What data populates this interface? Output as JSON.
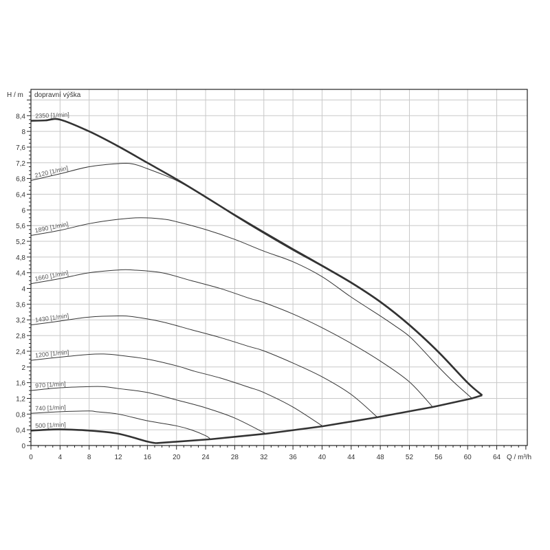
{
  "chart_data": {
    "type": "line",
    "title": "",
    "ylabel_axis": "H / m",
    "ylabel_text": "dopravní výška",
    "xlabel": "Q / m³/h",
    "xlim": [
      0,
      68.2
    ],
    "ylim": [
      0,
      9.07
    ],
    "x_ticks": [
      "0",
      "4",
      "8",
      "12",
      "16",
      "20",
      "24",
      "28",
      "32",
      "36",
      "40",
      "44",
      "48",
      "52",
      "56",
      "60",
      "64"
    ],
    "y_ticks": [
      "0",
      "0,4",
      "0,8",
      "1,2",
      "1,6",
      "2",
      "2,4",
      "2,8",
      "3,2",
      "3,6",
      "4",
      "4,4",
      "4,8",
      "5,2",
      "5,6",
      "6",
      "6,4",
      "6,8",
      "7,2",
      "7,6",
      "8",
      "8,4"
    ],
    "grid": true,
    "colors": {
      "curve": "#333333",
      "grid": "#c8c8c8",
      "axis": "#222222"
    },
    "series": [
      {
        "name": "2350 [1/min]",
        "bold": true,
        "points": [
          [
            0,
            8.27
          ],
          [
            2,
            8.28
          ],
          [
            4,
            8.3
          ],
          [
            8,
            8.0
          ],
          [
            12,
            7.62
          ],
          [
            16,
            7.2
          ],
          [
            20,
            6.78
          ],
          [
            24,
            6.33
          ],
          [
            28,
            5.87
          ],
          [
            32,
            5.43
          ],
          [
            36,
            5.0
          ],
          [
            40,
            4.58
          ],
          [
            44,
            4.15
          ],
          [
            48,
            3.66
          ],
          [
            52,
            3.07
          ],
          [
            56,
            2.38
          ],
          [
            60,
            1.6
          ],
          [
            62,
            1.28
          ]
        ]
      },
      {
        "name": "2120 [1/min]",
        "bold": false,
        "points": [
          [
            0,
            6.75
          ],
          [
            4,
            6.92
          ],
          [
            8,
            7.1
          ],
          [
            12,
            7.18
          ],
          [
            14,
            7.17
          ],
          [
            16,
            7.05
          ],
          [
            20,
            6.75
          ],
          [
            24,
            6.32
          ],
          [
            28,
            5.85
          ],
          [
            32,
            5.4
          ],
          [
            36,
            4.97
          ],
          [
            40,
            4.56
          ],
          [
            44,
            4.13
          ],
          [
            48,
            3.64
          ],
          [
            52,
            3.05
          ],
          [
            56,
            2.36
          ],
          [
            60,
            1.58
          ],
          [
            62,
            1.28
          ]
        ]
      },
      {
        "name": "1890 [1/min]",
        "bold": false,
        "points": [
          [
            0,
            5.35
          ],
          [
            4,
            5.48
          ],
          [
            8,
            5.65
          ],
          [
            12,
            5.76
          ],
          [
            15,
            5.8
          ],
          [
            18,
            5.77
          ],
          [
            20,
            5.7
          ],
          [
            24,
            5.5
          ],
          [
            28,
            5.25
          ],
          [
            32,
            4.95
          ],
          [
            36,
            4.68
          ],
          [
            40,
            4.3
          ],
          [
            44,
            3.78
          ],
          [
            48,
            3.3
          ],
          [
            50,
            3.05
          ],
          [
            52,
            2.78
          ],
          [
            54,
            2.4
          ],
          [
            56,
            2.0
          ],
          [
            58,
            1.63
          ],
          [
            60.6,
            1.2
          ]
        ]
      },
      {
        "name": "1660 [1/min]",
        "bold": false,
        "points": [
          [
            0,
            4.12
          ],
          [
            4,
            4.25
          ],
          [
            8,
            4.4
          ],
          [
            12,
            4.47
          ],
          [
            14,
            4.47
          ],
          [
            18,
            4.4
          ],
          [
            22,
            4.2
          ],
          [
            26,
            4.0
          ],
          [
            30,
            3.75
          ],
          [
            32,
            3.64
          ],
          [
            36,
            3.35
          ],
          [
            40,
            3.0
          ],
          [
            44,
            2.6
          ],
          [
            48,
            2.15
          ],
          [
            52,
            1.62
          ],
          [
            55.2,
            0.98
          ]
        ]
      },
      {
        "name": "1430 [1/min]",
        "bold": false,
        "points": [
          [
            0,
            3.07
          ],
          [
            4,
            3.17
          ],
          [
            8,
            3.27
          ],
          [
            12,
            3.3
          ],
          [
            14,
            3.28
          ],
          [
            18,
            3.15
          ],
          [
            22,
            2.95
          ],
          [
            26,
            2.75
          ],
          [
            30,
            2.52
          ],
          [
            32,
            2.41
          ],
          [
            36,
            2.1
          ],
          [
            40,
            1.75
          ],
          [
            44,
            1.3
          ],
          [
            47.6,
            0.72
          ]
        ]
      },
      {
        "name": "1200 [1/min]",
        "bold": false,
        "points": [
          [
            0,
            2.17
          ],
          [
            4,
            2.25
          ],
          [
            8,
            2.32
          ],
          [
            10,
            2.33
          ],
          [
            12,
            2.3
          ],
          [
            16,
            2.2
          ],
          [
            20,
            2.03
          ],
          [
            22.5,
            1.89
          ],
          [
            26,
            1.72
          ],
          [
            30,
            1.48
          ],
          [
            32,
            1.35
          ],
          [
            36,
            0.98
          ],
          [
            40.1,
            0.49
          ]
        ]
      },
      {
        "name": "970 [1/min]",
        "bold": false,
        "points": [
          [
            0,
            1.4
          ],
          [
            4,
            1.47
          ],
          [
            8,
            1.5
          ],
          [
            10,
            1.5
          ],
          [
            12,
            1.45
          ],
          [
            16,
            1.35
          ],
          [
            20,
            1.16
          ],
          [
            24,
            0.96
          ],
          [
            28,
            0.7
          ],
          [
            32.3,
            0.3
          ]
        ]
      },
      {
        "name": "740 [1/min]",
        "bold": false,
        "points": [
          [
            0,
            0.82
          ],
          [
            4,
            0.86
          ],
          [
            8,
            0.88
          ],
          [
            9,
            0.86
          ],
          [
            12,
            0.8
          ],
          [
            16,
            0.63
          ],
          [
            20,
            0.5
          ],
          [
            22,
            0.4
          ],
          [
            24,
            0.25
          ],
          [
            24.7,
            0.16
          ]
        ]
      },
      {
        "name": "500 [1/min]",
        "bold": true,
        "points": [
          [
            0,
            0.38
          ],
          [
            2,
            0.4
          ],
          [
            4,
            0.41
          ],
          [
            8,
            0.38
          ],
          [
            12,
            0.3
          ],
          [
            16,
            0.1
          ],
          [
            17.2,
            0.06
          ]
        ]
      }
    ],
    "system_curve": {
      "bold": true,
      "points": [
        [
          17.2,
          0.06
        ],
        [
          24.7,
          0.16
        ],
        [
          32.3,
          0.3
        ],
        [
          40.1,
          0.49
        ],
        [
          47.6,
          0.72
        ],
        [
          55.2,
          0.98
        ],
        [
          60.6,
          1.2
        ],
        [
          62,
          1.28
        ]
      ]
    }
  }
}
